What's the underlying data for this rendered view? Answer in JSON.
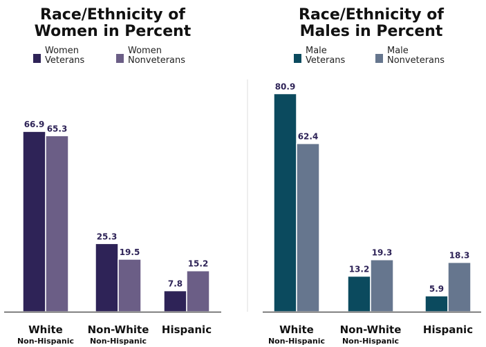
{
  "chart_data": [
    {
      "type": "bar",
      "title": [
        "Race/Ethnicity of",
        "Women in Percent"
      ],
      "categories": [
        {
          "main": "White",
          "sub": "Non-Hispanic"
        },
        {
          "main": "Non-White",
          "sub": "Non-Hispanic"
        },
        {
          "main": "Hispanic",
          "sub": ""
        }
      ],
      "series": [
        {
          "name": [
            "Women",
            "Veterans"
          ],
          "color": "#2e2357",
          "values": [
            66.9,
            25.3,
            7.8
          ]
        },
        {
          "name": [
            "Women",
            "Nonveterans"
          ],
          "color": "#6b5e86",
          "values": [
            65.3,
            19.5,
            15.2
          ]
        }
      ],
      "value_label_color": "#2e2357",
      "ylim": [
        0,
        90
      ],
      "grid": false,
      "legend_position": "top"
    },
    {
      "type": "bar",
      "title": [
        "Race/Ethnicity of",
        "Males in Percent"
      ],
      "categories": [
        {
          "main": "White",
          "sub": "Non-Hispanic"
        },
        {
          "main": "Non-White",
          "sub": "Non-Hispanic"
        },
        {
          "main": "Hispanic",
          "sub": ""
        }
      ],
      "series": [
        {
          "name": [
            "Male",
            "Veterans"
          ],
          "color": "#0b4a5e",
          "values": [
            80.9,
            13.2,
            5.9
          ]
        },
        {
          "name": [
            "Male",
            "Nonveterans"
          ],
          "color": "#66768e",
          "values": [
            62.4,
            19.3,
            18.3
          ]
        }
      ],
      "value_label_color": "#2e2357",
      "ylim": [
        0,
        90
      ],
      "grid": false,
      "legend_position": "top"
    }
  ]
}
